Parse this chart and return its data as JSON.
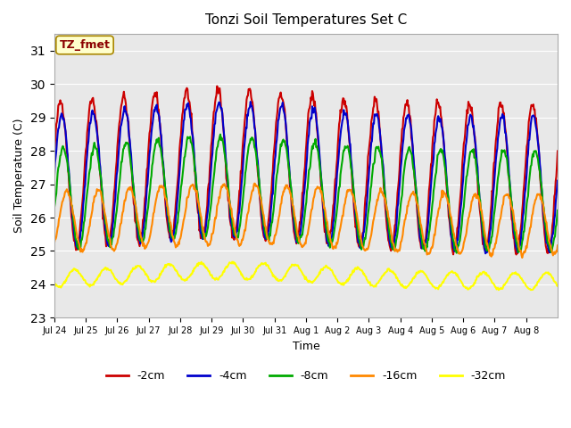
{
  "title": "Tonzi Soil Temperatures Set C",
  "xlabel": "Time",
  "ylabel": "Soil Temperature (C)",
  "ylim": [
    23.0,
    31.5
  ],
  "yticks": [
    23.0,
    24.0,
    25.0,
    26.0,
    27.0,
    28.0,
    29.0,
    30.0,
    31.0
  ],
  "annotation": "TZ_fmet",
  "annotation_color": "#8B0000",
  "annotation_bg": "#FFFFCC",
  "bg_color": "#E8E8E8",
  "series": {
    "-2cm": {
      "color": "#CC0000",
      "lw": 1.5
    },
    "-4cm": {
      "color": "#0000CC",
      "lw": 1.5
    },
    "-8cm": {
      "color": "#00AA00",
      "lw": 1.5
    },
    "-16cm": {
      "color": "#FF8800",
      "lw": 1.5
    },
    "-32cm": {
      "color": "#FFFF00",
      "lw": 1.5
    }
  },
  "xtick_labels": [
    "Jul 24",
    "Jul 25",
    "Jul 26",
    "Jul 27",
    "Jul 28",
    "Jul 29",
    "Jul 30",
    "Jul 31",
    "Aug 1",
    "Aug 2",
    "Aug 3",
    "Aug 4",
    "Aug 5",
    "Aug 6",
    "Aug 7",
    "Aug 8"
  ],
  "n_days": 16,
  "n_per_day": 48
}
